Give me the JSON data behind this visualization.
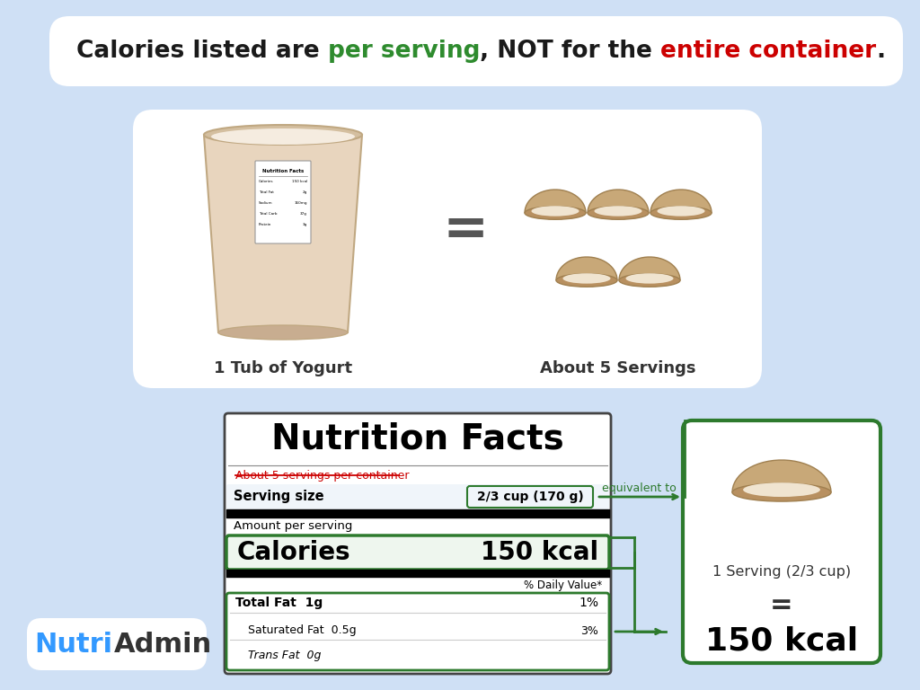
{
  "bg_color": "#cfe0f5",
  "title_parts": [
    {
      "text": "Calories listed are ",
      "color": "#1a1a1a",
      "bold": true
    },
    {
      "text": "per serving",
      "color": "#2e8b2e",
      "bold": true
    },
    {
      "text": ", NOT for the ",
      "color": "#1a1a1a",
      "bold": true
    },
    {
      "text": "entire container",
      "color": "#cc0000",
      "bold": true
    },
    {
      "text": ".",
      "color": "#1a1a1a",
      "bold": true
    }
  ],
  "yogurt_label": "1 Tub of Yogurt",
  "servings_label": "About 5 Servings",
  "nf_title": "Nutrition Facts",
  "nf_strikethrough": "About 5 servings per container",
  "nf_serving_label": "Serving size",
  "nf_serving_value": "2/3 cup (170 g)",
  "nf_amount_label": "Amount per serving",
  "nf_calories_label": "Calories",
  "nf_calories_value": "150 kcal",
  "nf_dv_label": "% Daily Value*",
  "nf_fat_label": "Total Fat  1g",
  "nf_fat_pct": "1%",
  "nf_satfat_label": "Saturated Fat  0.5g",
  "nf_satfat_pct": "3%",
  "nf_transfat_label": "Trans Fat  0g",
  "equiv_text": "equivalent to",
  "sb_line1": "1 Serving (2/3 cup)",
  "sb_equals": "=",
  "sb_kcal": "150 kcal",
  "na_nutri": "Nutri",
  "na_admin": "Admin",
  "green": "#2d7a2d",
  "red": "#cc0000",
  "blue": "#3399ff",
  "black": "#111111",
  "dark_gray": "#333333",
  "white": "#ffffff",
  "label_bg": "#f0f5fa"
}
